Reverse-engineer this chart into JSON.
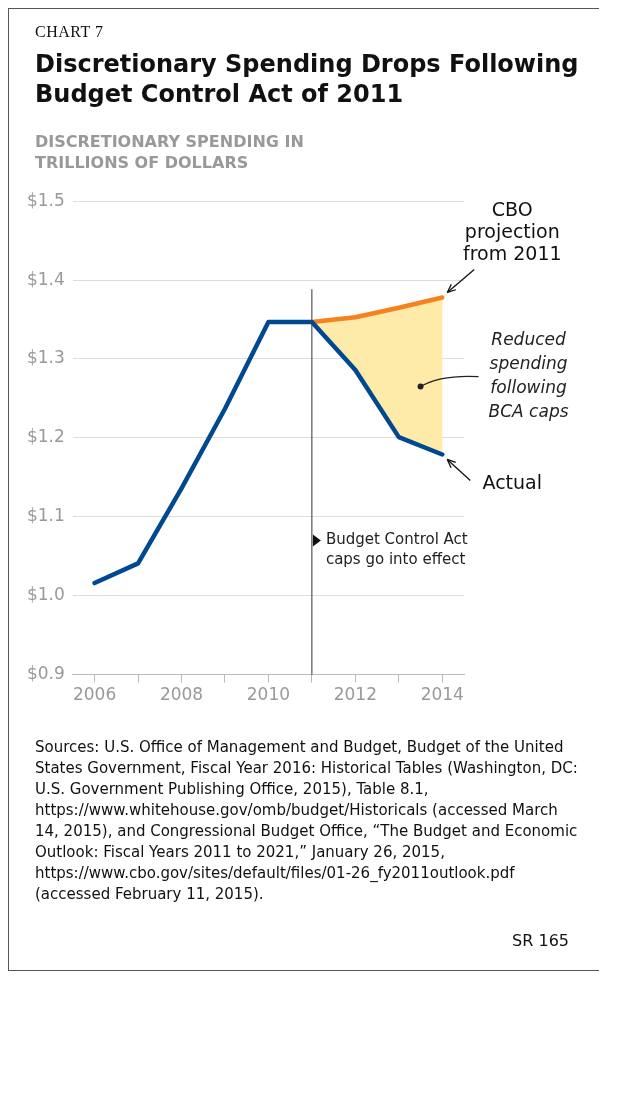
{
  "chart_data": {
    "type": "line",
    "title": "Discretionary Spending Drops Following Budget Control Act of 2011",
    "ylabel": "DISCRETIONARY SPENDING IN TRILLIONS OF DOLLARS",
    "x": [
      2006,
      2007,
      2008,
      2009,
      2010,
      2011,
      2012,
      2013,
      2014
    ],
    "series": [
      {
        "name": "Actual",
        "color": "#00488f",
        "values": [
          1.016,
          1.041,
          1.136,
          1.237,
          1.347,
          1.347,
          1.286,
          1.201,
          1.179
        ]
      },
      {
        "name": "CBO projection from 2011",
        "color": "#f5821f",
        "x": [
          2011,
          2012,
          2013,
          2014
        ],
        "values": [
          1.347,
          1.353,
          1.365,
          1.378
        ],
        "lower": [
          1.347,
          1.286,
          1.201,
          1.179
        ],
        "upper": [
          1.347,
          1.353,
          1.365,
          1.378
        ]
      }
    ],
    "xlim": [
      2005.5,
      2014.5
    ],
    "xticks": [
      2006,
      {
        "value": 2007,
        "label": null
      },
      2008,
      {
        "value": 2009,
        "label": null
      },
      2010,
      {
        "value": 2011,
        "label": null
      },
      2012,
      {
        "value": 2013,
        "label": null
      },
      2014
    ],
    "ylim": [
      0.9,
      1.5
    ],
    "yticks": [
      {
        "value": 0.9,
        "label": "$0.9"
      },
      {
        "value": 1.0,
        "label": "$1.0"
      },
      {
        "value": 1.1,
        "label": "$1.1"
      },
      {
        "value": 1.2,
        "label": "$1.2"
      },
      {
        "value": 1.3,
        "label": "$1.3"
      },
      {
        "value": 1.4,
        "label": "$1.4"
      },
      {
        "value": 1.5,
        "label": "$1.5"
      }
    ],
    "grid": "y",
    "legend": false,
    "marker": "none",
    "line_style": "solid",
    "ref_lines": [
      {
        "axis": "x",
        "value": 2011,
        "label": "Budget Control Act caps go into effect",
        "color": "#333333"
      }
    ],
    "annotations": [
      "CHART 7",
      {
        "text": "Reduced spending following BCA caps",
        "x": 2013.5,
        "y": 1.265
      },
      "Sources: U.S. Office of Management and Budget, Budget of the United States Government, Fiscal Year 2016: Historical Tables (Washington, DC: U.S. Government Publishing Office, 2015), Table 8.1, https://www.whitehouse.gov/omb/budget/Historicals (accessed March 14, 2015), and Congressional Budget Office, “The Budget and Economic Outlook: Fiscal Years 2011 to 2021,” January 26, 2015, https://www.cbo.gov/sites/default/files/01-26_fy2011outlook.pdf (accessed February 11, 2015).",
      "SR 165"
    ]
  }
}
